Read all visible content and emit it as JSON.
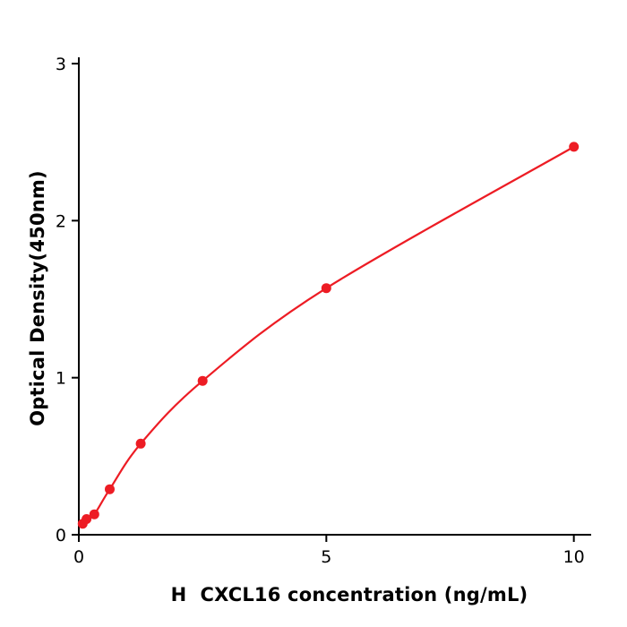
{
  "chart_data": {
    "type": "scatter",
    "title": "",
    "xlabel": "H  CXCL16 concentration (ng/mL)",
    "ylabel": "Optical Density(450nm)",
    "x": [
      0.078,
      0.156,
      0.313,
      0.625,
      1.25,
      2.5,
      5,
      10
    ],
    "y": [
      0.07,
      0.1,
      0.13,
      0.29,
      0.58,
      0.98,
      1.57,
      2.47
    ],
    "xlim": [
      0,
      10.35
    ],
    "ylim": [
      0,
      3.04
    ],
    "xticks": [
      0,
      5,
      10
    ],
    "yticks": [
      0,
      1,
      2,
      3
    ],
    "grid": false,
    "legend": "none",
    "curve": "smooth-fit-through-points",
    "point_color": "#ed1c24",
    "line_color": "#ed1c24",
    "axis_color": "#000000",
    "background": "#ffffff"
  }
}
